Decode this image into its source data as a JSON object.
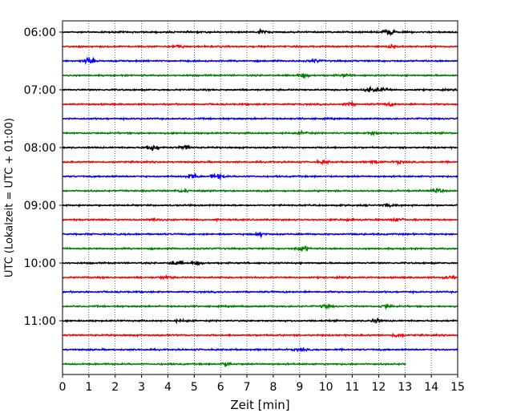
{
  "chart_data": {
    "type": "line",
    "xlabel": "Zeit  [min]",
    "ylabel": "UTC (Lokalzeit = UTC + 01:00)",
    "xlim": [
      0,
      15
    ],
    "xticks": [
      0,
      1,
      2,
      3,
      4,
      5,
      6,
      7,
      8,
      9,
      10,
      11,
      12,
      13,
      14,
      15
    ],
    "ytick_labels": [
      "06:00",
      "07:00",
      "08:00",
      "09:00",
      "10:00",
      "11:00"
    ],
    "grid": "vertical-dotted",
    "trace_colors": [
      "#000000",
      "#ff0000",
      "#0000ff",
      "#008000"
    ],
    "traces": [
      {
        "start": "06:00",
        "x_end": 15,
        "events": [
          [
            7.55,
            0.5
          ],
          [
            12.4,
            1.0
          ]
        ]
      },
      {
        "start": "06:15",
        "x_end": 15,
        "events": [
          [
            4.4,
            0.4
          ],
          [
            12.5,
            0.45
          ]
        ]
      },
      {
        "start": "06:30",
        "x_end": 15,
        "events": [
          [
            1.0,
            0.9
          ],
          [
            9.6,
            0.4
          ]
        ]
      },
      {
        "start": "06:45",
        "x_end": 15,
        "events": [
          [
            9.2,
            0.5
          ],
          [
            10.7,
            0.4
          ]
        ]
      },
      {
        "start": "07:00",
        "x_end": 15,
        "events": [
          [
            11.7,
            0.8
          ],
          [
            12.2,
            0.6
          ]
        ]
      },
      {
        "start": "07:15",
        "x_end": 15,
        "events": [
          [
            10.9,
            0.5
          ],
          [
            12.4,
            0.4
          ]
        ]
      },
      {
        "start": "07:30",
        "x_end": 15,
        "events": []
      },
      {
        "start": "07:45",
        "x_end": 15,
        "events": [
          [
            9.2,
            0.4
          ],
          [
            11.8,
            0.4
          ]
        ]
      },
      {
        "start": "08:00",
        "x_end": 15,
        "events": [
          [
            3.4,
            1.0
          ],
          [
            4.7,
            0.7
          ]
        ]
      },
      {
        "start": "08:15",
        "x_end": 15,
        "events": [
          [
            9.9,
            0.4
          ],
          [
            11.9,
            0.4
          ],
          [
            12.8,
            0.35
          ]
        ]
      },
      {
        "start": "08:30",
        "x_end": 15,
        "events": [
          [
            4.9,
            0.8
          ],
          [
            5.9,
            0.7
          ]
        ]
      },
      {
        "start": "08:45",
        "x_end": 15,
        "events": [
          [
            4.6,
            0.5
          ],
          [
            14.2,
            0.6
          ]
        ]
      },
      {
        "start": "09:00",
        "x_end": 15,
        "events": [
          [
            12.4,
            0.4
          ]
        ]
      },
      {
        "start": "09:15",
        "x_end": 15,
        "events": [
          [
            3.5,
            0.35
          ],
          [
            10.8,
            0.4
          ],
          [
            12.7,
            0.4
          ]
        ]
      },
      {
        "start": "09:30",
        "x_end": 15,
        "events": [
          [
            7.5,
            0.5
          ]
        ]
      },
      {
        "start": "09:45",
        "x_end": 15,
        "events": [
          [
            9.1,
            0.8
          ]
        ]
      },
      {
        "start": "10:00",
        "x_end": 15,
        "events": [
          [
            4.3,
            0.8
          ],
          [
            5.1,
            0.4
          ]
        ]
      },
      {
        "start": "10:15",
        "x_end": 15,
        "events": [
          [
            3.9,
            0.4
          ],
          [
            14.7,
            0.5
          ]
        ]
      },
      {
        "start": "10:30",
        "x_end": 15,
        "events": []
      },
      {
        "start": "10:45",
        "x_end": 15,
        "events": [
          [
            10.0,
            0.45
          ],
          [
            12.3,
            0.5
          ]
        ]
      },
      {
        "start": "11:00",
        "x_end": 15,
        "events": [
          [
            4.5,
            0.4
          ],
          [
            11.9,
            0.6
          ]
        ]
      },
      {
        "start": "11:15",
        "x_end": 15,
        "events": [
          [
            12.7,
            0.6
          ]
        ]
      },
      {
        "start": "11:30",
        "x_end": 15,
        "events": [
          [
            9.0,
            0.4
          ]
        ]
      },
      {
        "start": "11:45",
        "x_end": 13.05,
        "events": [
          [
            6.2,
            0.5
          ]
        ]
      }
    ]
  }
}
